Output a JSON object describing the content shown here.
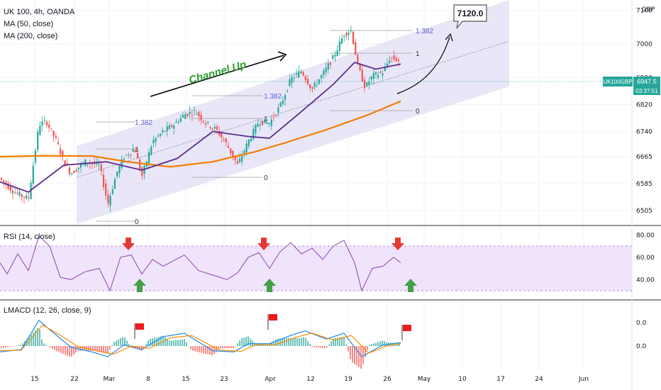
{
  "symbol_header": "UK 100, 4h, OANDA",
  "ma_labels": [
    "MA (50, close)",
    "MA (200, close)"
  ],
  "currency": "GBP",
  "price_tag": {
    "value": "6947.5",
    "symbol": "UK100GBP",
    "countdown": "03:37:51"
  },
  "callout": "7120.0",
  "channel_label": "Channel Up",
  "rsi_title": "RSI (14, close)",
  "lmacd_title": "LMACD (12, 26, close, 9)",
  "colors": {
    "up": "#26a69a",
    "down": "#ef5350",
    "ma50": "#5b2c8f",
    "ma200": "#f57c00",
    "channel": "#d7d3f0",
    "rsi": "#8e44ad",
    "rsi_band": "#efe4fb",
    "macd": "#1e88e5",
    "signal": "#fb8c00",
    "arrow_down": "#e53935",
    "arrow_up": "#43a047",
    "flag": "#ef1c1c",
    "channel_text": "#2e9c2e",
    "tag": "#26a69a"
  },
  "fib_labels": [
    {
      "text": "1.382"
    },
    {
      "text": "1"
    },
    {
      "text": "0"
    },
    {
      "text": "1.382"
    },
    {
      "text": "1"
    },
    {
      "text": "0"
    },
    {
      "text": "1.382"
    },
    {
      "text": "1"
    },
    {
      "text": "0"
    }
  ],
  "chart_data": [
    {
      "type": "candlestick",
      "title": "UK 100, 4h, OANDA",
      "x_ticks": [
        "15",
        "22",
        "Mar",
        "8",
        "15",
        "23",
        "Apr",
        "12",
        "19",
        "26",
        "May",
        "10",
        "17",
        "24",
        "Jun"
      ],
      "y_ticks": [
        6505.0,
        6585.0,
        6665.0,
        6740.0,
        6820.0,
        6900.0,
        7000.0,
        7100.0
      ],
      "ylim": [
        6480,
        7180
      ],
      "series": [
        {
          "name": "MA (50, close)",
          "points": [
            [
              0,
              6590
            ],
            [
              40,
              6560
            ],
            [
              90,
              6640
            ],
            [
              150,
              6650
            ],
            [
              200,
              6625
            ],
            [
              250,
              6660
            ],
            [
              300,
              6740
            ],
            [
              350,
              6725
            ],
            [
              380,
              6720
            ],
            [
              420,
              6790
            ],
            [
              470,
              6880
            ],
            [
              500,
              6945
            ],
            [
              530,
              6925
            ],
            [
              565,
              6940
            ]
          ]
        },
        {
          "name": "MA (200, close)",
          "points": [
            [
              0,
              6665
            ],
            [
              60,
              6668
            ],
            [
              130,
              6667
            ],
            [
              180,
              6650
            ],
            [
              240,
              6635
            ],
            [
              300,
              6650
            ],
            [
              360,
              6680
            ],
            [
              400,
              6705
            ],
            [
              460,
              6745
            ],
            [
              520,
              6790
            ],
            [
              565,
              6830
            ]
          ]
        }
      ],
      "price_path": [
        [
          0,
          6600
        ],
        [
          20,
          6560
        ],
        [
          40,
          6540
        ],
        [
          55,
          6760
        ],
        [
          65,
          6770
        ],
        [
          80,
          6710
        ],
        [
          90,
          6650
        ],
        [
          100,
          6615
        ],
        [
          120,
          6650
        ],
        [
          140,
          6640
        ],
        [
          152,
          6525
        ],
        [
          165,
          6620
        ],
        [
          175,
          6665
        ],
        [
          190,
          6690
        ],
        [
          200,
          6605
        ],
        [
          215,
          6710
        ],
        [
          230,
          6740
        ],
        [
          245,
          6760
        ],
        [
          260,
          6790
        ],
        [
          275,
          6800
        ],
        [
          290,
          6765
        ],
        [
          305,
          6745
        ],
        [
          320,
          6700
        ],
        [
          335,
          6640
        ],
        [
          350,
          6710
        ],
        [
          365,
          6770
        ],
        [
          380,
          6765
        ],
        [
          395,
          6815
        ],
        [
          410,
          6895
        ],
        [
          425,
          6920
        ],
        [
          440,
          6865
        ],
        [
          455,
          6910
        ],
        [
          470,
          6960
        ],
        [
          485,
          7030
        ],
        [
          495,
          7040
        ],
        [
          505,
          6930
        ],
        [
          515,
          6870
        ],
        [
          525,
          6905
        ],
        [
          540,
          6915
        ],
        [
          550,
          6960
        ],
        [
          565,
          6948
        ]
      ],
      "annotations": {
        "channel_label": "Channel Up",
        "target": "7120.0",
        "fib_sets": [
          {
            "1.382": null,
            "1": 6715,
            "0": 6520
          },
          {
            "1.382": 6800,
            "1": 6800,
            "0": 6630
          },
          {
            "1.382": 7060,
            "1": 7010,
            "0": 6830
          }
        ]
      }
    },
    {
      "type": "line",
      "title": "RSI (14, close)",
      "y_ticks": [
        40.0,
        60.0,
        80.0
      ],
      "ylim": [
        25,
        85
      ],
      "bands": [
        30,
        70
      ],
      "series": [
        {
          "name": "RSI (14, close)",
          "points": [
            [
              0,
              55
            ],
            [
              10,
              45
            ],
            [
              25,
              63
            ],
            [
              40,
              48
            ],
            [
              55,
              79
            ],
            [
              70,
              70
            ],
            [
              85,
              42
            ],
            [
              100,
              40
            ],
            [
              120,
              47
            ],
            [
              140,
              50
            ],
            [
              155,
              30
            ],
            [
              170,
              60
            ],
            [
              185,
              62
            ],
            [
              200,
              45
            ],
            [
              215,
              58
            ],
            [
              230,
              52
            ],
            [
              260,
              62
            ],
            [
              280,
              48
            ],
            [
              300,
              44
            ],
            [
              320,
              40
            ],
            [
              335,
              46
            ],
            [
              350,
              60
            ],
            [
              365,
              64
            ],
            [
              380,
              50
            ],
            [
              395,
              65
            ],
            [
              410,
              73
            ],
            [
              425,
              63
            ],
            [
              440,
              68
            ],
            [
              455,
              58
            ],
            [
              470,
              70
            ],
            [
              485,
              75
            ],
            [
              500,
              55
            ],
            [
              510,
              30
            ],
            [
              525,
              50
            ],
            [
              540,
              52
            ],
            [
              555,
              60
            ],
            [
              565,
              55
            ]
          ]
        }
      ],
      "markers": {
        "down_arrows": 3,
        "up_arrows": 3
      }
    },
    {
      "type": "line",
      "title": "LMACD (12, 26, close, 9)",
      "y_ticks": [
        0.0,
        0.0
      ],
      "series": [
        {
          "name": "MACD",
          "points": [
            [
              0,
              -0.5
            ],
            [
              30,
              -0.3
            ],
            [
              55,
              2.2
            ],
            [
              70,
              1.4
            ],
            [
              100,
              -0.1
            ],
            [
              130,
              -0.5
            ],
            [
              152,
              -0.9
            ],
            [
              175,
              0.1
            ],
            [
              200,
              -0.3
            ],
            [
              230,
              0.8
            ],
            [
              260,
              1.1
            ],
            [
              300,
              -0.4
            ],
            [
              330,
              -0.5
            ],
            [
              350,
              0.2
            ],
            [
              380,
              0.2
            ],
            [
              410,
              0.9
            ],
            [
              430,
              1.3
            ],
            [
              460,
              0.6
            ],
            [
              485,
              1.1
            ],
            [
              510,
              -0.9
            ],
            [
              540,
              0.1
            ],
            [
              565,
              0.3
            ]
          ]
        },
        {
          "name": "Signal",
          "points": [
            [
              0,
              -0.4
            ],
            [
              30,
              -0.35
            ],
            [
              60,
              1.8
            ],
            [
              80,
              1.1
            ],
            [
              110,
              -0.05
            ],
            [
              140,
              -0.45
            ],
            [
              160,
              -0.7
            ],
            [
              185,
              0.0
            ],
            [
              210,
              -0.2
            ],
            [
              240,
              0.7
            ],
            [
              270,
              0.9
            ],
            [
              310,
              -0.35
            ],
            [
              340,
              -0.45
            ],
            [
              360,
              0.1
            ],
            [
              390,
              0.15
            ],
            [
              420,
              0.8
            ],
            [
              440,
              1.1
            ],
            [
              470,
              0.5
            ],
            [
              495,
              0.9
            ],
            [
              520,
              -0.6
            ],
            [
              545,
              0.0
            ],
            [
              565,
              0.2
            ]
          ]
        }
      ],
      "markers": {
        "flags": 3
      }
    }
  ]
}
